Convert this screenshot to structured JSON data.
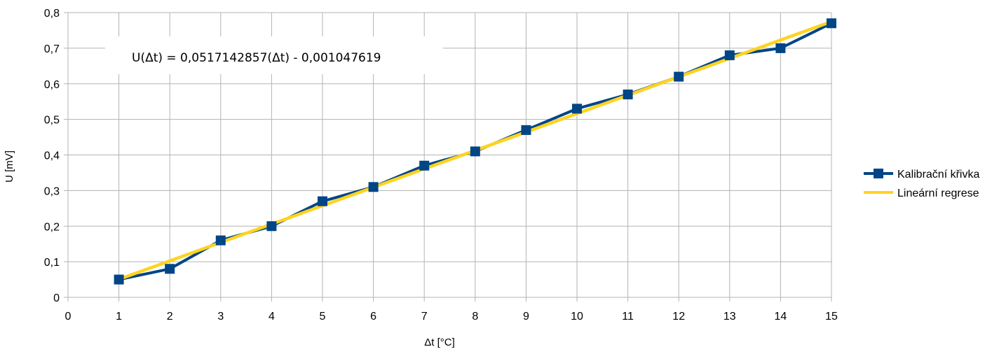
{
  "chart_data": {
    "type": "line",
    "title": "",
    "xlabel": "Δt [°C]",
    "ylabel": "U [mV]",
    "xlim": [
      0,
      15
    ],
    "ylim": [
      0,
      0.8
    ],
    "x_ticks": [
      0,
      1,
      2,
      3,
      4,
      5,
      6,
      7,
      8,
      9,
      10,
      11,
      12,
      13,
      14,
      15
    ],
    "x_tick_labels": [
      "0",
      "1",
      "2",
      "3",
      "4",
      "5",
      "6",
      "7",
      "8",
      "9",
      "10",
      "11",
      "12",
      "13",
      "14",
      "15"
    ],
    "y_ticks": [
      0,
      0.1,
      0.2,
      0.3,
      0.4,
      0.5,
      0.6,
      0.7,
      0.8
    ],
    "y_tick_labels": [
      "0",
      "0,1",
      "0,2",
      "0,3",
      "0,4",
      "0,5",
      "0,6",
      "0,7",
      "0,8"
    ],
    "grid": true,
    "legend_position": "right",
    "equation": "U(Δt) = 0,0517142857(Δt) - 0,001047619",
    "series": [
      {
        "name": "Kalibrační křivka",
        "color": "#004586",
        "marker": "square",
        "x": [
          1,
          2,
          3,
          4,
          5,
          6,
          7,
          8,
          9,
          10,
          11,
          12,
          13,
          14,
          15
        ],
        "y": [
          0.05,
          0.08,
          0.16,
          0.2,
          0.27,
          0.31,
          0.37,
          0.41,
          0.47,
          0.53,
          0.57,
          0.62,
          0.68,
          0.7,
          0.77
        ]
      },
      {
        "name": "Lineární regrese",
        "color": "#ffd320",
        "marker": "none",
        "x": [
          1,
          15
        ],
        "y": [
          0.0506667,
          0.7746667
        ]
      }
    ]
  }
}
